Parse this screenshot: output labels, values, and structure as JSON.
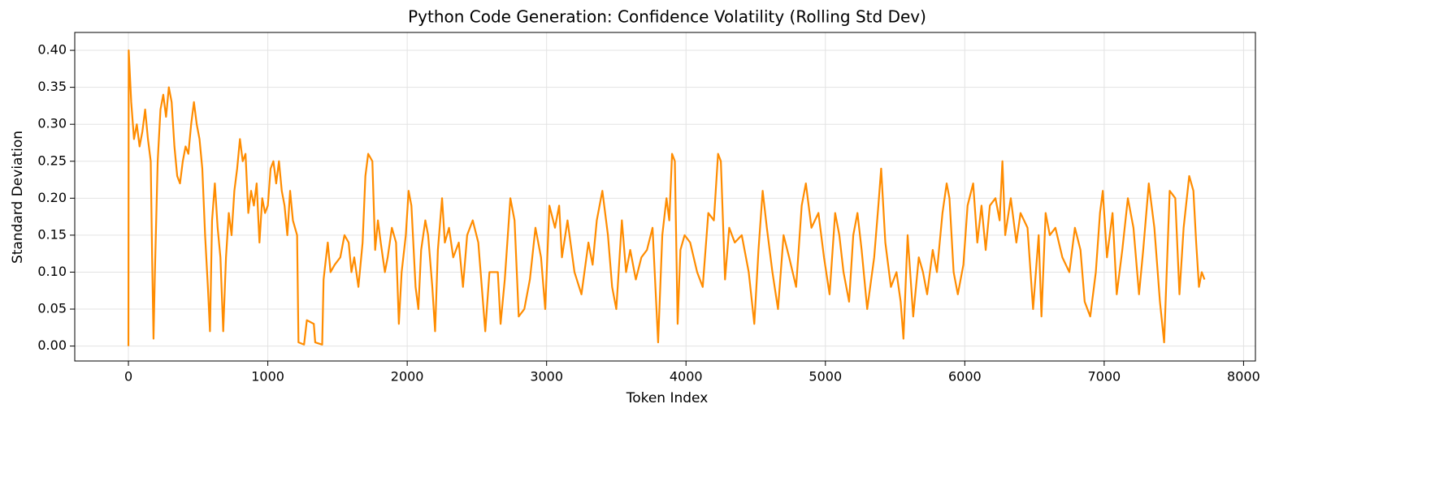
{
  "chart_data": {
    "type": "line",
    "title": "Python Code Generation: Confidence Volatility (Rolling Std Dev)",
    "x_label": "Token Index",
    "y_label": "Standard Deviation",
    "x": [
      0,
      2,
      20,
      40,
      60,
      80,
      100,
      120,
      140,
      160,
      170,
      180,
      190,
      210,
      230,
      250,
      270,
      290,
      310,
      330,
      350,
      370,
      390,
      410,
      430,
      450,
      470,
      490,
      510,
      530,
      550,
      570,
      585,
      600,
      620,
      640,
      660,
      680,
      700,
      720,
      740,
      760,
      780,
      800,
      820,
      840,
      860,
      880,
      900,
      920,
      940,
      960,
      980,
      1000,
      1020,
      1040,
      1060,
      1080,
      1100,
      1120,
      1140,
      1160,
      1180,
      1210,
      1220,
      1260,
      1280,
      1330,
      1340,
      1390,
      1400,
      1430,
      1450,
      1480,
      1520,
      1550,
      1580,
      1600,
      1620,
      1650,
      1680,
      1700,
      1720,
      1750,
      1770,
      1790,
      1810,
      1840,
      1860,
      1890,
      1920,
      1940,
      1960,
      1990,
      2010,
      2030,
      2060,
      2080,
      2100,
      2130,
      2150,
      2180,
      2200,
      2220,
      2250,
      2270,
      2300,
      2330,
      2370,
      2400,
      2430,
      2470,
      2510,
      2560,
      2590,
      2650,
      2670,
      2700,
      2740,
      2770,
      2800,
      2840,
      2880,
      2920,
      2960,
      2990,
      3020,
      3060,
      3090,
      3110,
      3150,
      3200,
      3250,
      3300,
      3330,
      3360,
      3400,
      3440,
      3470,
      3500,
      3540,
      3570,
      3600,
      3640,
      3680,
      3720,
      3760,
      3800,
      3830,
      3860,
      3880,
      3900,
      3920,
      3940,
      3960,
      3990,
      4030,
      4080,
      4120,
      4160,
      4200,
      4230,
      4250,
      4280,
      4310,
      4350,
      4400,
      4450,
      4490,
      4520,
      4550,
      4580,
      4620,
      4660,
      4700,
      4740,
      4790,
      4830,
      4860,
      4900,
      4950,
      4990,
      5030,
      5070,
      5100,
      5130,
      5170,
      5200,
      5230,
      5260,
      5300,
      5350,
      5380,
      5400,
      5430,
      5470,
      5510,
      5540,
      5560,
      5590,
      5630,
      5670,
      5700,
      5730,
      5770,
      5800,
      5840,
      5870,
      5890,
      5920,
      5950,
      5990,
      6020,
      6060,
      6090,
      6120,
      6150,
      6180,
      6220,
      6250,
      6270,
      6290,
      6330,
      6370,
      6400,
      6450,
      6490,
      6530,
      6550,
      6580,
      6610,
      6650,
      6700,
      6750,
      6790,
      6830,
      6860,
      6900,
      6940,
      6970,
      6990,
      7020,
      7060,
      7090,
      7130,
      7170,
      7210,
      7250,
      7280,
      7320,
      7360,
      7400,
      7430,
      7470,
      7510,
      7540,
      7570,
      7610,
      7640,
      7660,
      7680,
      7700,
      7720
    ],
    "series": [
      {
        "color": "#ff8c00",
        "values": [
          0.0,
          0.4,
          0.33,
          0.28,
          0.3,
          0.27,
          0.29,
          0.32,
          0.28,
          0.25,
          0.12,
          0.01,
          0.1,
          0.25,
          0.32,
          0.34,
          0.31,
          0.35,
          0.33,
          0.27,
          0.23,
          0.22,
          0.25,
          0.27,
          0.26,
          0.3,
          0.33,
          0.3,
          0.28,
          0.24,
          0.15,
          0.08,
          0.02,
          0.17,
          0.22,
          0.16,
          0.12,
          0.02,
          0.12,
          0.18,
          0.15,
          0.21,
          0.24,
          0.28,
          0.25,
          0.26,
          0.18,
          0.21,
          0.19,
          0.22,
          0.14,
          0.2,
          0.18,
          0.19,
          0.24,
          0.25,
          0.22,
          0.25,
          0.21,
          0.19,
          0.15,
          0.21,
          0.17,
          0.15,
          0.005,
          0.002,
          0.035,
          0.03,
          0.005,
          0.002,
          0.09,
          0.14,
          0.1,
          0.11,
          0.12,
          0.15,
          0.14,
          0.1,
          0.12,
          0.08,
          0.14,
          0.23,
          0.26,
          0.25,
          0.13,
          0.17,
          0.14,
          0.1,
          0.12,
          0.16,
          0.14,
          0.03,
          0.1,
          0.15,
          0.21,
          0.19,
          0.08,
          0.05,
          0.13,
          0.17,
          0.15,
          0.08,
          0.02,
          0.13,
          0.2,
          0.14,
          0.16,
          0.12,
          0.14,
          0.08,
          0.15,
          0.17,
          0.14,
          0.02,
          0.1,
          0.1,
          0.03,
          0.09,
          0.2,
          0.17,
          0.04,
          0.05,
          0.09,
          0.16,
          0.12,
          0.05,
          0.19,
          0.16,
          0.19,
          0.12,
          0.17,
          0.1,
          0.07,
          0.14,
          0.11,
          0.17,
          0.21,
          0.15,
          0.08,
          0.05,
          0.17,
          0.1,
          0.13,
          0.09,
          0.12,
          0.13,
          0.16,
          0.005,
          0.15,
          0.2,
          0.17,
          0.26,
          0.25,
          0.03,
          0.13,
          0.15,
          0.14,
          0.1,
          0.08,
          0.18,
          0.17,
          0.26,
          0.25,
          0.09,
          0.16,
          0.14,
          0.15,
          0.1,
          0.03,
          0.13,
          0.21,
          0.16,
          0.1,
          0.05,
          0.15,
          0.12,
          0.08,
          0.19,
          0.22,
          0.16,
          0.18,
          0.12,
          0.07,
          0.18,
          0.15,
          0.1,
          0.06,
          0.15,
          0.18,
          0.13,
          0.05,
          0.12,
          0.19,
          0.24,
          0.14,
          0.08,
          0.1,
          0.06,
          0.01,
          0.15,
          0.04,
          0.12,
          0.1,
          0.07,
          0.13,
          0.1,
          0.18,
          0.22,
          0.2,
          0.1,
          0.07,
          0.11,
          0.19,
          0.22,
          0.14,
          0.19,
          0.13,
          0.19,
          0.2,
          0.17,
          0.25,
          0.15,
          0.2,
          0.14,
          0.18,
          0.16,
          0.05,
          0.15,
          0.04,
          0.18,
          0.15,
          0.16,
          0.12,
          0.1,
          0.16,
          0.13,
          0.06,
          0.04,
          0.1,
          0.18,
          0.21,
          0.12,
          0.18,
          0.07,
          0.13,
          0.2,
          0.16,
          0.07,
          0.13,
          0.22,
          0.16,
          0.06,
          0.005,
          0.21,
          0.2,
          0.07,
          0.16,
          0.23,
          0.21,
          0.14,
          0.08,
          0.1,
          0.09
        ]
      }
    ],
    "xlim": [
      -385,
      8085
    ],
    "ylim": [
      -0.0202,
      0.4242
    ],
    "xticks": [
      0,
      1000,
      2000,
      3000,
      4000,
      5000,
      6000,
      7000,
      8000
    ],
    "yticks": [
      {
        "value": 0,
        "label": "0.00"
      },
      {
        "value": 0.05,
        "label": "0.05"
      },
      {
        "value": 0.1,
        "label": "0.10"
      },
      {
        "value": 0.15,
        "label": "0.15"
      },
      {
        "value": 0.2,
        "label": "0.20"
      },
      {
        "value": 0.25,
        "label": "0.25"
      },
      {
        "value": 0.3,
        "label": "0.30"
      },
      {
        "value": 0.35,
        "label": "0.35"
      },
      {
        "value": 0.4,
        "label": "0.40"
      }
    ],
    "grid": true
  }
}
